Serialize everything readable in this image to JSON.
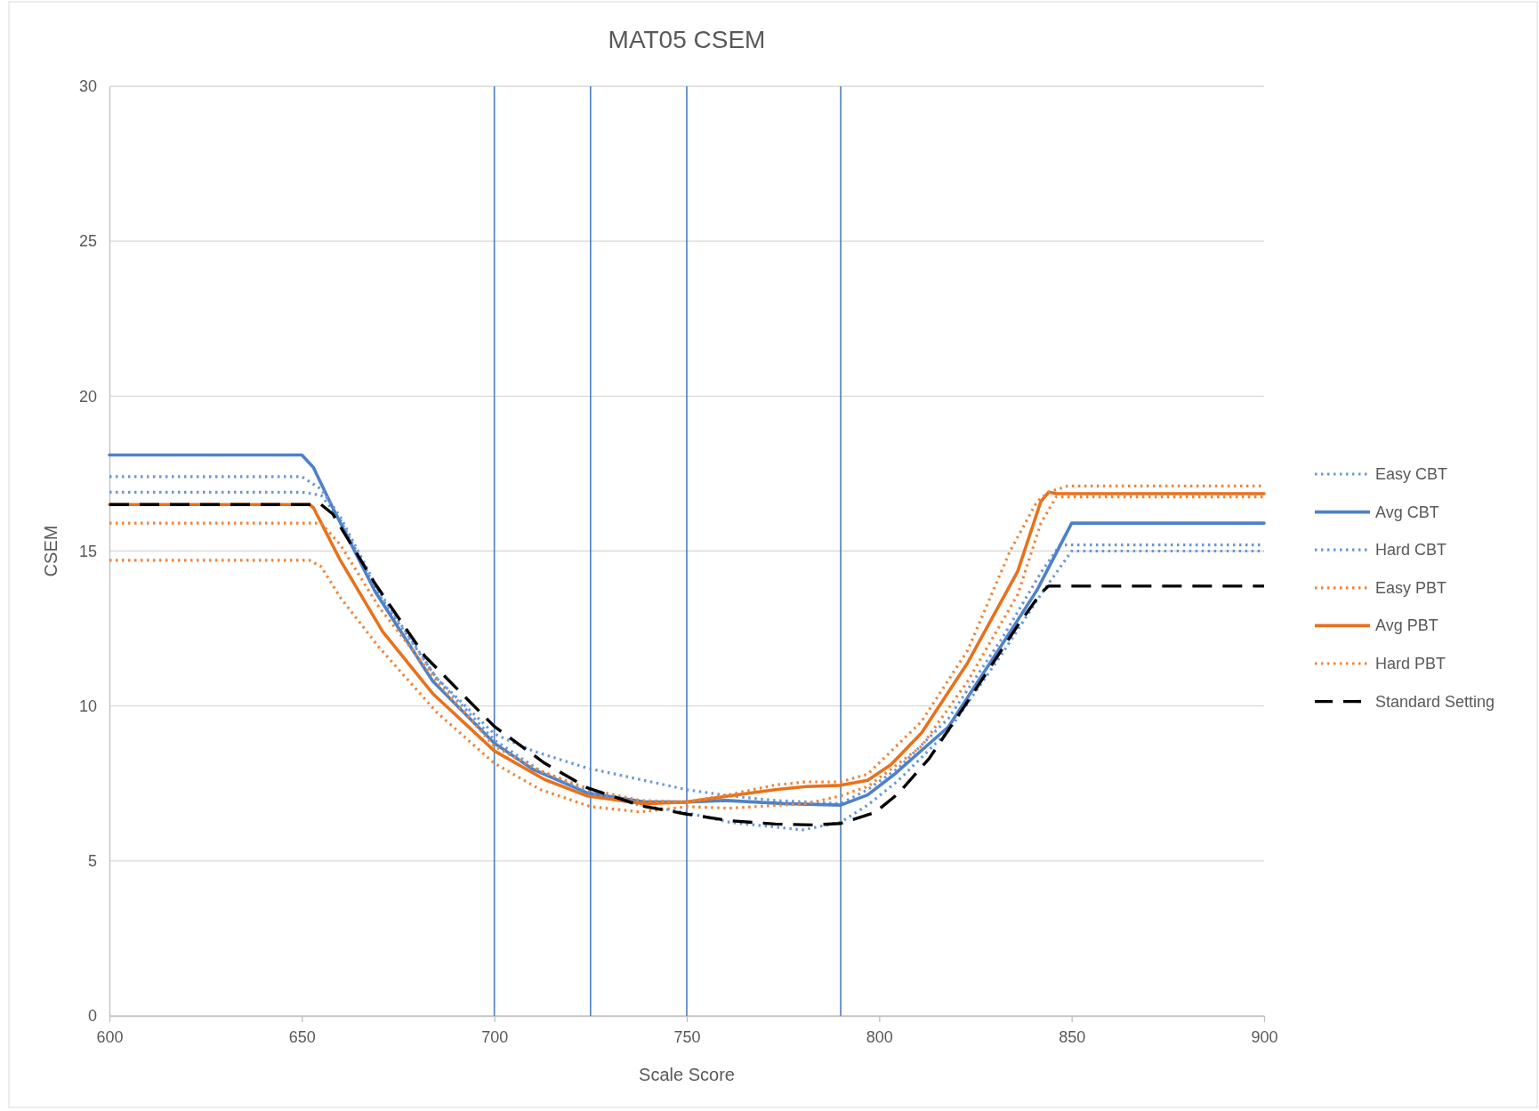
{
  "chart_data": {
    "type": "line",
    "title": "MAT05 CSEM",
    "xlabel": "Scale Score",
    "ylabel": "CSEM",
    "xlim": [
      600,
      900
    ],
    "xticks": [
      600,
      650,
      700,
      750,
      800,
      850,
      900
    ],
    "ylim": [
      0,
      30
    ],
    "yticks": [
      0,
      5,
      10,
      15,
      20,
      25,
      30
    ],
    "grid": "y",
    "legend": "right",
    "marker": "none",
    "ref_lines": [
      {
        "axis": "x",
        "value": 700,
        "color": "#4a7ec4"
      },
      {
        "axis": "x",
        "value": 725,
        "color": "#4a7ec4"
      },
      {
        "axis": "x",
        "value": 750,
        "color": "#4a7ec4"
      },
      {
        "axis": "x",
        "value": 790,
        "color": "#4a7ec4"
      }
    ],
    "series": [
      {
        "name": "Easy CBT",
        "color": "#6a97d6",
        "line_style": "dotted",
        "x": [
          600,
          650,
          655,
          660,
          670,
          685,
          700,
          710,
          724,
          740,
          750,
          761,
          773,
          790,
          797,
          805,
          818,
          832,
          842,
          847,
          900
        ],
        "values": [
          16.9,
          16.9,
          16.8,
          16.0,
          13.6,
          10.9,
          9.1,
          8.55,
          8.0,
          7.57,
          7.3,
          7.1,
          6.95,
          6.85,
          7.3,
          8.0,
          9.6,
          12.2,
          14.3,
          15.2,
          15.2
        ]
      },
      {
        "name": "Avg CBT",
        "color": "#4f81c7",
        "line_style": "solid",
        "x": [
          600,
          650,
          653,
          658,
          669,
          684,
          700,
          710,
          724,
          739,
          750,
          760,
          775,
          790,
          797,
          804,
          818,
          832,
          841,
          850,
          900
        ],
        "values": [
          18.1,
          18.1,
          17.7,
          16.4,
          13.7,
          10.8,
          8.8,
          7.96,
          7.2,
          6.9,
          6.9,
          6.95,
          6.85,
          6.8,
          7.13,
          7.8,
          9.33,
          12.0,
          13.74,
          15.9,
          15.9
        ]
      },
      {
        "name": "Hard CBT",
        "color": "#6a97d6",
        "line_style": "dotted",
        "x": [
          600,
          650,
          655,
          660,
          670,
          685,
          700,
          712,
          725,
          738,
          750,
          761,
          780,
          790,
          797,
          805,
          818,
          832,
          842,
          850,
          900
        ],
        "values": [
          17.4,
          17.4,
          17.0,
          16.1,
          13.7,
          10.9,
          8.9,
          7.9,
          7.2,
          6.8,
          6.55,
          6.25,
          6.0,
          6.25,
          6.8,
          7.6,
          9.2,
          11.7,
          13.6,
          15.0,
          15.0
        ]
      },
      {
        "name": "Easy PBT",
        "color": "#ee8436",
        "line_style": "dotted",
        "x": [
          600,
          652,
          655,
          660,
          670,
          685,
          700,
          712,
          725,
          738,
          750,
          761,
          781,
          790,
          797,
          811,
          823,
          836,
          842,
          846,
          900
        ],
        "values": [
          14.7,
          14.7,
          14.5,
          13.5,
          11.9,
          9.8,
          8.15,
          7.3,
          6.75,
          6.58,
          6.75,
          6.7,
          6.85,
          7.1,
          7.4,
          8.7,
          10.8,
          13.6,
          15.9,
          16.75,
          16.75
        ]
      },
      {
        "name": "Avg PBT",
        "color": "#e8711c",
        "line_style": "solid",
        "x": [
          600,
          652,
          653,
          660,
          671,
          684,
          700,
          713,
          724,
          739,
          750,
          761,
          773,
          781,
          790,
          797,
          803,
          811,
          823,
          836,
          842,
          844,
          846,
          900
        ],
        "values": [
          16.5,
          16.5,
          16.4,
          14.7,
          12.4,
          10.4,
          8.55,
          7.63,
          7.1,
          6.84,
          6.9,
          7.1,
          7.3,
          7.4,
          7.44,
          7.6,
          8.1,
          9.13,
          11.4,
          14.35,
          16.6,
          16.9,
          16.85,
          16.85
        ]
      },
      {
        "name": "Hard PBT",
        "color": "#ee8436",
        "line_style": "dotted",
        "x": [
          600,
          655,
          660,
          670,
          685,
          700,
          712,
          725,
          738,
          750,
          761,
          773,
          781,
          790,
          797,
          811,
          823,
          834,
          841,
          844,
          849,
          900
        ],
        "values": [
          15.9,
          15.9,
          15.2,
          13.2,
          10.8,
          8.7,
          7.9,
          7.3,
          6.95,
          6.9,
          7.14,
          7.45,
          7.55,
          7.55,
          7.8,
          9.5,
          11.8,
          15.0,
          16.6,
          16.9,
          17.1,
          17.1
        ]
      },
      {
        "name": "Standard Setting",
        "color": "#000000",
        "line_style": "dashed",
        "x": [
          600,
          655,
          658,
          669,
          682,
          700,
          713,
          724,
          738,
          750,
          761,
          773,
          783,
          790,
          799,
          805,
          813,
          823,
          836,
          842,
          844,
          900
        ],
        "values": [
          16.5,
          16.5,
          16.2,
          13.95,
          11.6,
          9.34,
          8.16,
          7.37,
          6.78,
          6.51,
          6.3,
          6.19,
          6.16,
          6.21,
          6.57,
          7.18,
          8.31,
          10.15,
          12.6,
          13.64,
          13.87,
          13.87
        ]
      }
    ]
  }
}
